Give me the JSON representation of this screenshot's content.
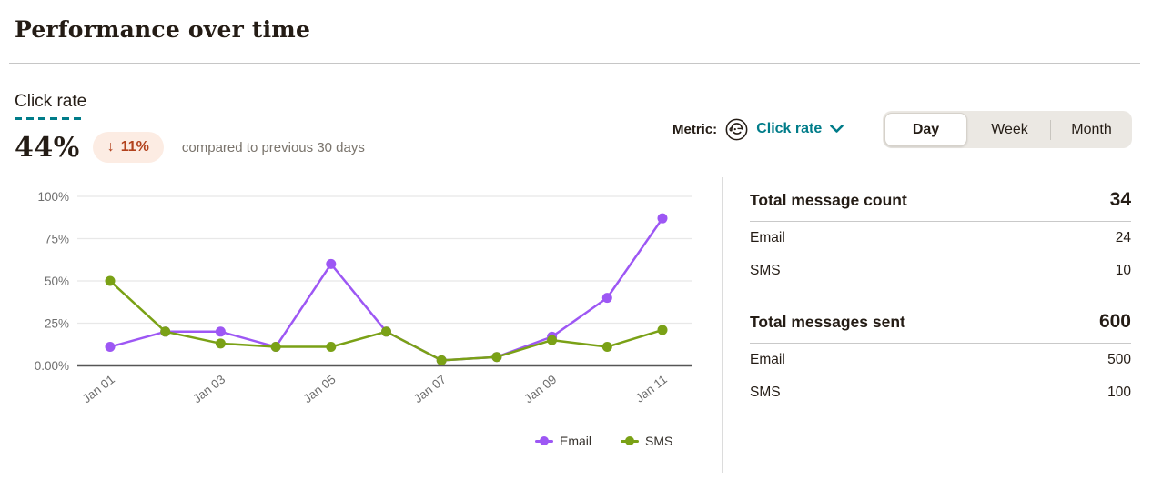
{
  "header": {
    "title": "Performance over time"
  },
  "stats": {
    "metric_heading": "Click rate",
    "value": "44%",
    "change": {
      "arrow": "↓",
      "value": "11%",
      "direction": "down"
    },
    "comparison": "compared to previous 30 days"
  },
  "controls": {
    "metric_prefix": "Metric:",
    "metric_selected": "Click rate",
    "granularity": [
      {
        "label": "Day",
        "active": true
      },
      {
        "label": "Week",
        "active": false
      },
      {
        "label": "Month",
        "active": false
      }
    ]
  },
  "chart_data": {
    "type": "line",
    "x": [
      "Jan 01",
      "Jan 02",
      "Jan 03",
      "Jan 04",
      "Jan 05",
      "Jan 06",
      "Jan 07",
      "Jan 08",
      "Jan 09",
      "Jan 10",
      "Jan 11"
    ],
    "x_tick_indices": [
      0,
      2,
      4,
      6,
      8,
      10
    ],
    "series": [
      {
        "name": "Email",
        "color": "#9d57f4",
        "values": [
          11,
          20,
          20,
          11,
          60,
          20,
          3,
          5,
          17,
          40,
          87
        ]
      },
      {
        "name": "SMS",
        "color": "#7aa116",
        "values": [
          50,
          20,
          13,
          11,
          11,
          20,
          3,
          5,
          15,
          11,
          21
        ]
      }
    ],
    "y_ticks": [
      {
        "value": 0,
        "label": "0.00%"
      },
      {
        "value": 25,
        "label": "25%"
      },
      {
        "value": 50,
        "label": "50%"
      },
      {
        "value": 75,
        "label": "75%"
      },
      {
        "value": 100,
        "label": "100%"
      }
    ],
    "ylim": [
      0,
      100
    ],
    "title": "",
    "xlabel": "",
    "ylabel": "",
    "grid": "horizontal-only",
    "legend_position": "bottom"
  },
  "summary": {
    "sections": [
      {
        "title": "Total message count",
        "value": "34",
        "rows": [
          {
            "label": "Email",
            "value": "24"
          },
          {
            "label": "SMS",
            "value": "10"
          }
        ]
      },
      {
        "title": "Total messages sent",
        "value": "600",
        "rows": [
          {
            "label": "Email",
            "value": "500"
          },
          {
            "label": "SMS",
            "value": "100"
          }
        ]
      }
    ]
  },
  "colors": {
    "accent_teal": "#007c89",
    "email_purple": "#9d57f4",
    "sms_green": "#7aa116",
    "negative_badge_bg": "#fcece3",
    "negative_badge_text": "#b2421d"
  }
}
